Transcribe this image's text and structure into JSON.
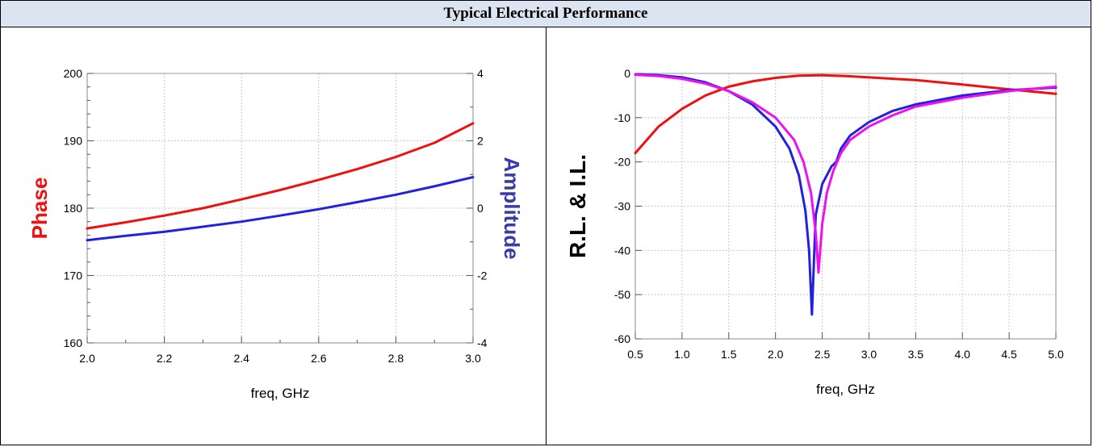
{
  "page_title": "Typical Electrical Performance",
  "colors": {
    "title_bg": "#dbe5f1",
    "red": "#ee1111",
    "blue": "#2222dd",
    "magenta": "#ee11ee",
    "phase_label": "#ee1111",
    "amplitude_label": "#3a3aaa"
  },
  "chart_data": [
    {
      "type": "line",
      "xlabel": "freq, GHz",
      "ylabel": "Phase",
      "y2label": "Amplitude",
      "xlim": [
        2.0,
        3.0
      ],
      "ylim": [
        160,
        200
      ],
      "y2lim": [
        -4,
        4
      ],
      "xticks": [
        "2.0",
        "2.2",
        "2.4",
        "2.6",
        "2.8",
        "3.0"
      ],
      "yticks": [
        "160",
        "170",
        "180",
        "190",
        "200"
      ],
      "y2ticks": [
        "-4",
        "-2",
        "0",
        "2",
        "4"
      ],
      "grid": true,
      "series": [
        {
          "axis": "left",
          "color": "#ee1111",
          "x": [
            2.0,
            2.1,
            2.2,
            2.3,
            2.4,
            2.5,
            2.6,
            2.7,
            2.8,
            2.9,
            3.0
          ],
          "y": [
            177.0,
            177.9,
            178.9,
            180.0,
            181.3,
            182.7,
            184.2,
            185.8,
            187.6,
            189.7,
            192.6
          ]
        },
        {
          "axis": "right",
          "color": "#2222dd",
          "x": [
            2.0,
            2.1,
            2.2,
            2.3,
            2.4,
            2.5,
            2.6,
            2.7,
            2.8,
            2.9,
            3.0
          ],
          "y": [
            -0.95,
            -0.82,
            -0.7,
            -0.55,
            -0.4,
            -0.22,
            -0.03,
            0.18,
            0.4,
            0.65,
            0.92
          ]
        }
      ]
    },
    {
      "type": "line",
      "xlabel": "freq, GHz",
      "ylabel": "R.L. & I.L.",
      "xlim": [
        0.5,
        5.0
      ],
      "ylim": [
        -60,
        0
      ],
      "xticks": [
        "0.5",
        "1.0",
        "1.5",
        "2.0",
        "2.5",
        "3.0",
        "3.5",
        "4.0",
        "4.5",
        "5.0"
      ],
      "yticks": [
        "-60",
        "-50",
        "-40",
        "-30",
        "-20",
        "-10",
        "0"
      ],
      "grid": true,
      "series": [
        {
          "color": "#ee1111",
          "x": [
            0.5,
            0.75,
            1.0,
            1.25,
            1.5,
            1.75,
            2.0,
            2.25,
            2.5,
            2.75,
            3.0,
            3.5,
            4.0,
            4.5,
            5.0
          ],
          "y": [
            -18,
            -12,
            -8,
            -5,
            -3,
            -1.8,
            -1.0,
            -0.5,
            -0.4,
            -0.6,
            -0.9,
            -1.5,
            -2.5,
            -3.6,
            -4.6
          ]
        },
        {
          "color": "#2222dd",
          "x": [
            0.5,
            0.75,
            1.0,
            1.25,
            1.5,
            1.75,
            2.0,
            2.15,
            2.25,
            2.32,
            2.36,
            2.39,
            2.43,
            2.5,
            2.6,
            2.65,
            2.7,
            2.8,
            3.0,
            3.25,
            3.5,
            4.0,
            4.5,
            5.0
          ],
          "y": [
            -0.2,
            -0.4,
            -0.9,
            -2.0,
            -4.0,
            -7.0,
            -12.0,
            -17.0,
            -23.0,
            -31.0,
            -40.0,
            -54.5,
            -32.0,
            -25.0,
            -21.0,
            -20.0,
            -17.0,
            -14.0,
            -11.0,
            -8.5,
            -7.0,
            -5.0,
            -3.8,
            -3.2
          ]
        },
        {
          "color": "#ee11ee",
          "x": [
            0.5,
            0.75,
            1.0,
            1.25,
            1.5,
            1.75,
            2.0,
            2.2,
            2.3,
            2.38,
            2.43,
            2.46,
            2.5,
            2.55,
            2.62,
            2.7,
            2.8,
            3.0,
            3.25,
            3.5,
            4.0,
            4.5,
            5.0
          ],
          "y": [
            -0.3,
            -0.6,
            -1.2,
            -2.3,
            -4.0,
            -6.5,
            -10.0,
            -15.0,
            -20.0,
            -27.0,
            -36.0,
            -45.0,
            -34.0,
            -27.0,
            -22.0,
            -18.0,
            -15.0,
            -12.0,
            -9.5,
            -7.5,
            -5.5,
            -4.0,
            -3.0
          ]
        }
      ]
    }
  ]
}
